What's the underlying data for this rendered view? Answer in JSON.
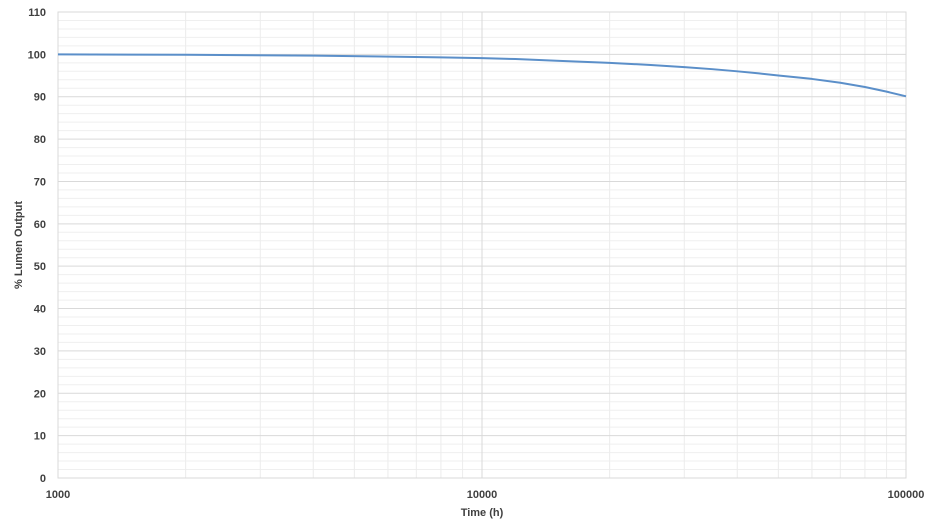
{
  "chart_data": {
    "type": "line",
    "title": "",
    "xlabel": "Time (h)",
    "ylabel": "% Lumen Output",
    "x_scale": "log",
    "xlim": [
      1000,
      100000
    ],
    "ylim": [
      0,
      110
    ],
    "x_ticks": [
      {
        "value": 1000,
        "label": "1000"
      },
      {
        "value": 10000,
        "label": "10000"
      },
      {
        "value": 100000,
        "label": "100000"
      }
    ],
    "y_ticks": [
      {
        "value": 0,
        "label": "0"
      },
      {
        "value": 10,
        "label": "10"
      },
      {
        "value": 20,
        "label": "20"
      },
      {
        "value": 30,
        "label": "30"
      },
      {
        "value": 40,
        "label": "40"
      },
      {
        "value": 50,
        "label": "50"
      },
      {
        "value": 60,
        "label": "60"
      },
      {
        "value": 70,
        "label": "70"
      },
      {
        "value": 80,
        "label": "80"
      },
      {
        "value": 90,
        "label": "90"
      },
      {
        "value": 100,
        "label": "100"
      },
      {
        "value": 110,
        "label": "110"
      }
    ],
    "grid": true,
    "legend": "none",
    "series": [
      {
        "color": "#5b8fc9",
        "x": [
          1000,
          2000,
          4000,
          8000,
          10000,
          12000,
          15000,
          20000,
          25000,
          30000,
          35000,
          40000,
          45000,
          50000,
          55000,
          60000,
          70000,
          80000,
          90000,
          100000
        ],
        "y": [
          100,
          99.9,
          99.7,
          99.3,
          99.1,
          98.9,
          98.5,
          98.0,
          97.5,
          97.0,
          96.5,
          96.0,
          95.5,
          95.0,
          94.6,
          94.2,
          93.3,
          92.3,
          91.2,
          90.1
        ]
      }
    ]
  }
}
